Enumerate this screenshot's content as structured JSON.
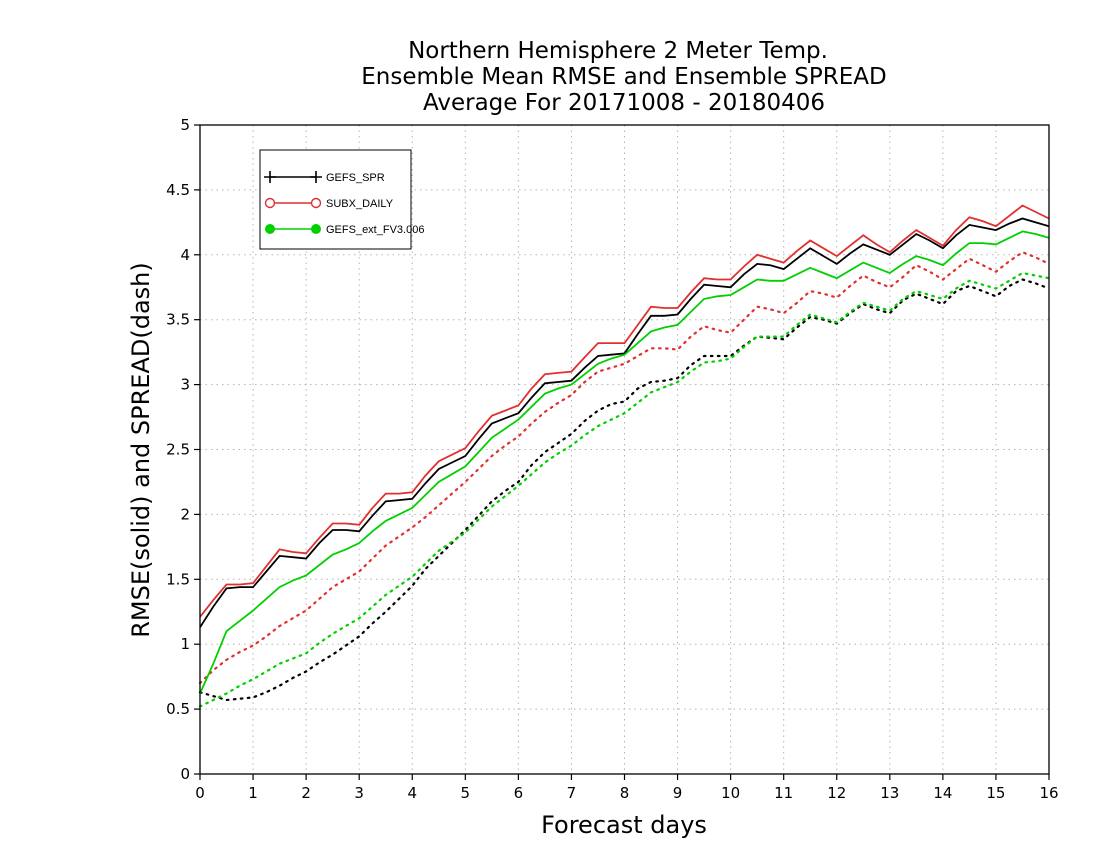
{
  "chart_data": {
    "type": "line",
    "title": [
      "Northern Hemisphere 2 Meter Temp.",
      "Ensemble Mean RMSE and Ensemble SPREAD",
      "Average For 20171008 - 20180406"
    ],
    "xlabel": "Forecast days",
    "ylabel": "RMSE(solid) and SPREAD(dash)",
    "xlim": [
      0,
      16
    ],
    "ylim": [
      0,
      5
    ],
    "xticks": [
      0,
      1,
      2,
      3,
      4,
      5,
      6,
      7,
      8,
      9,
      10,
      11,
      12,
      13,
      14,
      15,
      16
    ],
    "xtick_labels": [
      "0",
      "1",
      "2",
      "3",
      "4",
      "5",
      "6",
      "7",
      "8",
      "9",
      "10",
      "11",
      "12",
      "13",
      "14",
      "15",
      "16"
    ],
    "yticks": [
      0,
      0.5,
      1,
      1.5,
      2,
      2.5,
      3,
      3.5,
      4,
      4.5,
      5
    ],
    "ytick_labels": [
      "0",
      "0.5",
      "1",
      "1.5",
      "2",
      "2.5",
      "3",
      "3.5",
      "4",
      "4.5",
      "5"
    ],
    "grid": true,
    "legend_position": "top-left",
    "x": [
      0,
      0.25,
      0.5,
      0.75,
      1,
      1.25,
      1.5,
      1.75,
      2,
      2.25,
      2.5,
      2.75,
      3,
      3.25,
      3.5,
      3.75,
      4,
      4.25,
      4.5,
      4.75,
      5,
      5.25,
      5.5,
      5.75,
      6,
      6.25,
      6.5,
      6.75,
      7,
      7.25,
      7.5,
      7.75,
      8,
      8.25,
      8.5,
      8.75,
      9,
      9.25,
      9.5,
      9.75,
      10,
      10.25,
      10.5,
      10.75,
      11,
      11.25,
      11.5,
      11.75,
      12,
      12.25,
      12.5,
      12.75,
      13,
      13.25,
      13.5,
      13.75,
      14,
      14.25,
      14.5,
      14.75,
      15,
      15.25,
      15.5,
      15.75,
      16
    ],
    "series": [
      {
        "name": "GEFS_SPR",
        "color": "#000000",
        "marker": "plus",
        "rmse": [
          1.13,
          1.29,
          1.43,
          1.44,
          1.44,
          1.56,
          1.68,
          1.67,
          1.66,
          1.78,
          1.88,
          1.88,
          1.87,
          1.99,
          2.1,
          2.11,
          2.12,
          2.24,
          2.35,
          2.4,
          2.45,
          2.58,
          2.7,
          2.74,
          2.78,
          2.9,
          3.01,
          3.02,
          3.03,
          3.13,
          3.22,
          3.23,
          3.24,
          3.39,
          3.53,
          3.53,
          3.54,
          3.66,
          3.77,
          3.76,
          3.75,
          3.85,
          3.93,
          3.92,
          3.89,
          3.97,
          4.05,
          3.99,
          3.93,
          4.01,
          4.08,
          4.04,
          4.0,
          4.08,
          4.16,
          4.11,
          4.05,
          4.15,
          4.23,
          4.21,
          4.19,
          4.24,
          4.28,
          4.25,
          4.22
        ],
        "spread": [
          0.63,
          0.6,
          0.57,
          0.58,
          0.59,
          0.63,
          0.68,
          0.74,
          0.79,
          0.86,
          0.92,
          0.99,
          1.06,
          1.16,
          1.25,
          1.35,
          1.45,
          1.58,
          1.68,
          1.78,
          1.88,
          1.99,
          2.1,
          2.18,
          2.25,
          2.38,
          2.48,
          2.55,
          2.62,
          2.72,
          2.8,
          2.85,
          2.87,
          2.97,
          3.02,
          3.03,
          3.05,
          3.15,
          3.22,
          3.22,
          3.22,
          3.3,
          3.37,
          3.36,
          3.35,
          3.44,
          3.52,
          3.5,
          3.47,
          3.55,
          3.62,
          3.58,
          3.55,
          3.65,
          3.7,
          3.66,
          3.62,
          3.72,
          3.76,
          3.72,
          3.68,
          3.76,
          3.81,
          3.78,
          3.74
        ]
      },
      {
        "name": "SUBX_DAILY",
        "color": "#e0302f",
        "marker": "open-circle",
        "rmse": [
          1.21,
          1.34,
          1.46,
          1.46,
          1.47,
          1.6,
          1.73,
          1.71,
          1.7,
          1.82,
          1.93,
          1.93,
          1.92,
          2.05,
          2.16,
          2.16,
          2.17,
          2.3,
          2.41,
          2.46,
          2.51,
          2.64,
          2.76,
          2.8,
          2.84,
          2.97,
          3.08,
          3.09,
          3.1,
          3.21,
          3.32,
          3.32,
          3.32,
          3.46,
          3.6,
          3.59,
          3.59,
          3.71,
          3.82,
          3.81,
          3.81,
          3.91,
          4.0,
          3.97,
          3.94,
          4.03,
          4.11,
          4.05,
          3.99,
          4.07,
          4.15,
          4.08,
          4.02,
          4.11,
          4.19,
          4.13,
          4.07,
          4.19,
          4.29,
          4.26,
          4.22,
          4.3,
          4.38,
          4.33,
          4.28
        ],
        "spread": [
          0.7,
          0.8,
          0.88,
          0.94,
          0.99,
          1.06,
          1.14,
          1.2,
          1.26,
          1.35,
          1.44,
          1.5,
          1.56,
          1.66,
          1.76,
          1.83,
          1.9,
          1.98,
          2.07,
          2.16,
          2.25,
          2.35,
          2.45,
          2.53,
          2.6,
          2.7,
          2.79,
          2.86,
          2.92,
          3.02,
          3.1,
          3.13,
          3.16,
          3.22,
          3.28,
          3.28,
          3.27,
          3.37,
          3.45,
          3.42,
          3.4,
          3.5,
          3.6,
          3.58,
          3.55,
          3.63,
          3.72,
          3.7,
          3.67,
          3.76,
          3.84,
          3.79,
          3.75,
          3.83,
          3.92,
          3.87,
          3.81,
          3.89,
          3.97,
          3.92,
          3.87,
          3.95,
          4.02,
          3.98,
          3.93
        ]
      },
      {
        "name": "GEFS_ext_FV3.006",
        "color": "#00d000",
        "marker": "filled-circle",
        "rmse": [
          0.62,
          0.85,
          1.1,
          1.18,
          1.26,
          1.35,
          1.44,
          1.49,
          1.53,
          1.61,
          1.69,
          1.73,
          1.78,
          1.87,
          1.95,
          2.0,
          2.05,
          2.15,
          2.25,
          2.31,
          2.37,
          2.48,
          2.59,
          2.66,
          2.73,
          2.83,
          2.93,
          2.97,
          3.0,
          3.08,
          3.16,
          3.2,
          3.23,
          3.32,
          3.41,
          3.44,
          3.46,
          3.56,
          3.66,
          3.68,
          3.69,
          3.75,
          3.81,
          3.8,
          3.8,
          3.85,
          3.9,
          3.86,
          3.82,
          3.88,
          3.94,
          3.9,
          3.86,
          3.93,
          3.99,
          3.96,
          3.92,
          4.01,
          4.09,
          4.09,
          4.08,
          4.13,
          4.18,
          4.16,
          4.13
        ],
        "spread": [
          0.52,
          0.57,
          0.62,
          0.68,
          0.73,
          0.79,
          0.85,
          0.89,
          0.93,
          1.01,
          1.08,
          1.14,
          1.2,
          1.29,
          1.38,
          1.45,
          1.52,
          1.62,
          1.72,
          1.79,
          1.86,
          1.96,
          2.06,
          2.14,
          2.22,
          2.31,
          2.4,
          2.47,
          2.53,
          2.61,
          2.68,
          2.73,
          2.78,
          2.86,
          2.94,
          2.98,
          3.02,
          3.1,
          3.17,
          3.18,
          3.2,
          3.29,
          3.37,
          3.37,
          3.37,
          3.46,
          3.54,
          3.51,
          3.48,
          3.56,
          3.63,
          3.6,
          3.57,
          3.66,
          3.72,
          3.69,
          3.66,
          3.74,
          3.8,
          3.77,
          3.74,
          3.8,
          3.86,
          3.84,
          3.82
        ]
      }
    ]
  }
}
